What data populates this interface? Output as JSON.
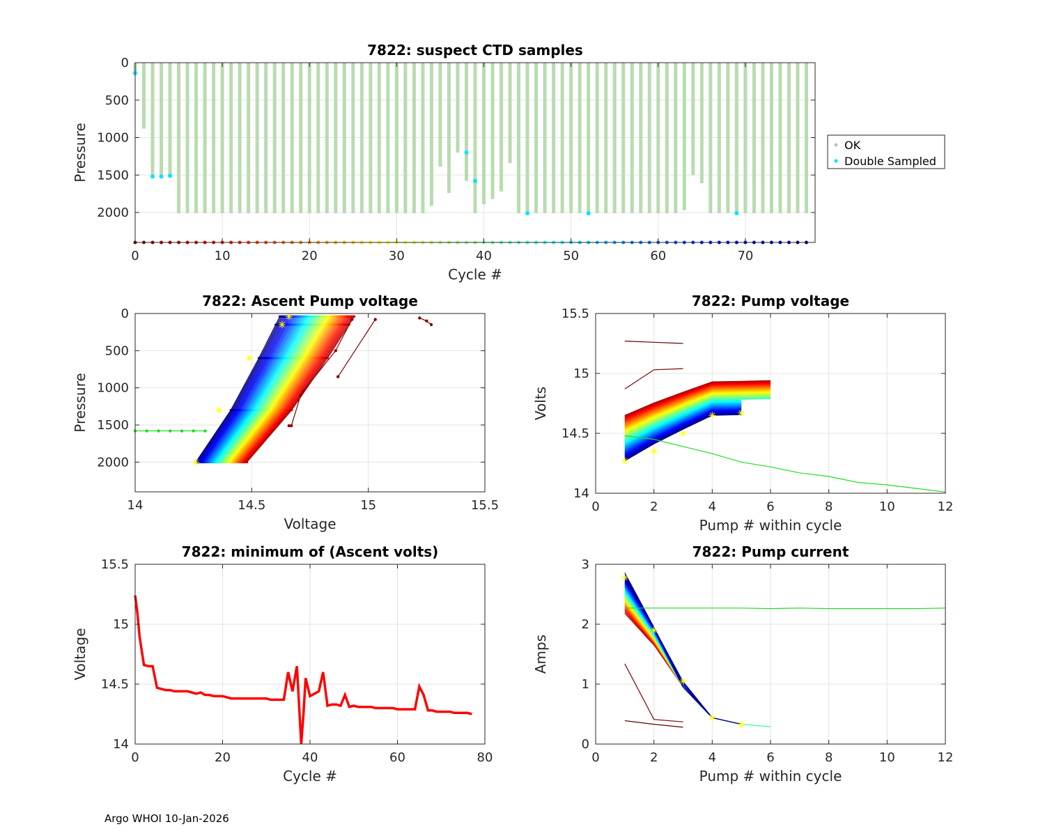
{
  "figure": {
    "footer": "Argo WHOI 10-Jan-2026",
    "float_id": "7822"
  },
  "colors": {
    "ok": "#b8dcb0",
    "ok_marker": "#c0c0c0",
    "double_sampled": "#00e5ff",
    "grid": "#e3e3e3",
    "min_volts_line": "#ff0000",
    "marker_star": "#ffff00",
    "outlier_green": "#22dd22"
  },
  "chart_data": [
    {
      "id": "suspect",
      "type": "bar",
      "title": "7822: suspect CTD samples",
      "xlabel": "Cycle #",
      "ylabel": "Pressure",
      "xlim": [
        0,
        78
      ],
      "ylim": [
        0,
        2400
      ],
      "yreverse": true,
      "xticks": [
        0,
        10,
        20,
        30,
        40,
        50,
        60,
        70
      ],
      "yticks": [
        0,
        500,
        1000,
        1500,
        2000
      ],
      "legend": {
        "placement": "outside-right",
        "entries": [
          "OK",
          "Double Sampled"
        ]
      },
      "series": [
        {
          "name": "OK",
          "x": [
            0,
            1,
            2,
            3,
            4,
            5,
            6,
            7,
            8,
            9,
            10,
            11,
            12,
            13,
            14,
            15,
            16,
            17,
            18,
            19,
            20,
            21,
            22,
            23,
            24,
            25,
            26,
            27,
            28,
            29,
            30,
            31,
            32,
            33,
            34,
            35,
            36,
            37,
            38,
            39,
            40,
            41,
            42,
            43,
            44,
            45,
            46,
            47,
            48,
            49,
            50,
            51,
            52,
            53,
            54,
            55,
            56,
            57,
            58,
            59,
            60,
            61,
            62,
            63,
            64,
            65,
            66,
            67,
            68,
            69,
            70,
            71,
            72,
            73,
            74,
            75,
            76,
            77
          ],
          "values": [
            140,
            880,
            1520,
            1520,
            1510,
            2010,
            2010,
            2010,
            2010,
            2010,
            2010,
            2010,
            2010,
            2010,
            2010,
            2010,
            2010,
            2010,
            2010,
            2010,
            2010,
            2010,
            2010,
            2010,
            2010,
            2010,
            2010,
            2010,
            2010,
            2010,
            2010,
            2010,
            2010,
            2010,
            1910,
            1390,
            1740,
            1200,
            1580,
            2010,
            1890,
            1820,
            1720,
            1340,
            2010,
            2010,
            2010,
            2010,
            2010,
            2010,
            2010,
            2010,
            2010,
            2010,
            2010,
            2010,
            2010,
            2010,
            2010,
            2010,
            2010,
            2010,
            2010,
            1970,
            1500,
            1610,
            2010,
            2010,
            2010,
            2010,
            2010,
            2010,
            2010,
            2010,
            2010,
            2010,
            2010,
            2010
          ]
        },
        {
          "name": "Double Sampled",
          "points": [
            [
              0,
              140
            ],
            [
              2,
              1520
            ],
            [
              3,
              1520
            ],
            [
              4,
              1510
            ],
            [
              38,
              1200
            ],
            [
              39,
              1580
            ],
            [
              45,
              2010
            ],
            [
              52,
              2010
            ],
            [
              69,
              2010
            ]
          ]
        }
      ],
      "cycle_markers_at_pressure": 2400
    },
    {
      "id": "ascent_pump_voltage",
      "type": "line",
      "title": "7822: Ascent Pump voltage",
      "xlabel": "Voltage",
      "ylabel": "Pressure",
      "xlim": [
        14,
        15.5
      ],
      "ylim": [
        0,
        2400
      ],
      "yreverse": true,
      "xticks": [
        14,
        14.5,
        15,
        15.5
      ],
      "yticks": [
        0,
        500,
        1000,
        1500,
        2000
      ],
      "n_cycles": 78,
      "band": {
        "v2000_min": 14.26,
        "v2000_max": 14.48,
        "vtop_min": 14.62,
        "vtop_max": 14.94
      },
      "outliers": [
        {
          "name": "cycle-0",
          "color": "#800000",
          "x": [
            15.22,
            15.25,
            15.27
          ],
          "y": [
            60,
            100,
            150
          ]
        },
        {
          "name": "cycle-1",
          "color": "#800000",
          "x": [
            14.87,
            15.03
          ],
          "y": [
            850,
            80
          ]
        },
        {
          "name": "cycle-2",
          "color": "#900000",
          "x": [
            14.66,
            14.67,
            14.71,
            14.72,
            14.86,
            14.93
          ],
          "y": [
            1510,
            1510,
            1100,
            1050,
            500,
            80
          ]
        },
        {
          "name": "cycle-38",
          "color": "#22dd22",
          "x": [
            14.0,
            14.05,
            14.1,
            14.15,
            14.2,
            14.25,
            14.3
          ],
          "y": [
            1580,
            1580,
            1580,
            1580,
            1580,
            1580,
            1580
          ]
        }
      ]
    },
    {
      "id": "pump_voltage",
      "type": "line",
      "title": "7822: Pump voltage",
      "xlabel": "Pump # within cycle",
      "ylabel": "Volts",
      "xlim": [
        0,
        12
      ],
      "ylim": [
        14,
        15.5
      ],
      "xticks": [
        0,
        2,
        4,
        6,
        8,
        10,
        12
      ],
      "yticks": [
        14,
        14.5,
        15,
        15.5
      ],
      "n_cycles": 78,
      "outliers": [
        {
          "name": "cycle-0",
          "color": "#600000",
          "x": [
            1,
            2,
            3
          ],
          "y": [
            15.27,
            15.26,
            15.25
          ]
        },
        {
          "name": "cycle-1",
          "color": "#800000",
          "x": [
            1,
            2,
            3
          ],
          "y": [
            14.87,
            15.03,
            15.04
          ]
        },
        {
          "name": "cycle-38",
          "color": "#22dd22",
          "x": [
            1,
            2,
            3,
            4,
            5,
            6,
            7,
            8,
            9,
            10,
            11,
            12
          ],
          "y": [
            14.48,
            14.45,
            14.39,
            14.33,
            14.26,
            14.22,
            14.17,
            14.14,
            14.09,
            14.07,
            14.04,
            14.01
          ]
        }
      ]
    },
    {
      "id": "min_ascent_volts",
      "type": "line",
      "title": "7822: minimum of (Ascent volts)",
      "xlabel": "Cycle #",
      "ylabel": "Voltage",
      "xlim": [
        0,
        80
      ],
      "ylim": [
        14,
        15.5
      ],
      "xticks": [
        0,
        20,
        40,
        60,
        80
      ],
      "yticks": [
        14,
        14.5,
        15,
        15.5
      ],
      "x": [
        0,
        0.5,
        1,
        1.5,
        2,
        3,
        4,
        5,
        6,
        7,
        8,
        9,
        10,
        11,
        12,
        13,
        14,
        15,
        16,
        17,
        18,
        19,
        20,
        21,
        22,
        23,
        24,
        25,
        26,
        27,
        28,
        29,
        30,
        31,
        32,
        33,
        34,
        35,
        36,
        37,
        38,
        38.5,
        39,
        40,
        41,
        42,
        43,
        44,
        45,
        46,
        47,
        48,
        49,
        50,
        51,
        52,
        53,
        54,
        55,
        56,
        57,
        58,
        59,
        60,
        61,
        62,
        63,
        64,
        65,
        66,
        67,
        68,
        69,
        70,
        71,
        72,
        73,
        74,
        75,
        76,
        77
      ],
      "values": [
        15.24,
        15.1,
        14.9,
        14.78,
        14.66,
        14.65,
        14.65,
        14.47,
        14.46,
        14.45,
        14.45,
        14.44,
        14.44,
        14.44,
        14.44,
        14.43,
        14.42,
        14.43,
        14.41,
        14.41,
        14.4,
        14.4,
        14.4,
        14.39,
        14.38,
        14.38,
        14.38,
        14.38,
        14.38,
        14.38,
        14.38,
        14.38,
        14.38,
        14.37,
        14.37,
        14.37,
        14.37,
        14.6,
        14.44,
        14.65,
        14.0,
        14.25,
        14.55,
        14.4,
        14.42,
        14.44,
        14.6,
        14.32,
        14.33,
        14.33,
        14.32,
        14.41,
        14.31,
        14.32,
        14.31,
        14.31,
        14.31,
        14.31,
        14.3,
        14.3,
        14.3,
        14.3,
        14.3,
        14.29,
        14.29,
        14.29,
        14.29,
        14.29,
        14.48,
        14.41,
        14.28,
        14.28,
        14.27,
        14.27,
        14.27,
        14.27,
        14.26,
        14.26,
        14.26,
        14.26,
        14.25
      ]
    },
    {
      "id": "pump_current",
      "type": "line",
      "title": "7822: Pump current",
      "xlabel": "Pump # within cycle",
      "ylabel": "Amps",
      "xlim": [
        0,
        12
      ],
      "ylim": [
        0,
        3
      ],
      "xticks": [
        0,
        2,
        4,
        6,
        8,
        10,
        12
      ],
      "yticks": [
        0,
        1,
        2,
        3
      ],
      "n_cycles": 78,
      "outliers": [
        {
          "name": "cycle-0",
          "color": "#600000",
          "x": [
            1,
            2,
            3
          ],
          "y": [
            0.39,
            0.33,
            0.28
          ]
        },
        {
          "name": "cycle-1",
          "color": "#800000",
          "x": [
            1,
            2,
            3
          ],
          "y": [
            1.34,
            0.41,
            0.37
          ]
        },
        {
          "name": "cycle-38",
          "color": "#22dd22",
          "x": [
            1,
            2,
            3,
            4,
            5,
            6,
            7,
            8,
            9,
            10,
            11,
            12
          ],
          "y": [
            2.27,
            2.27,
            2.27,
            2.27,
            2.27,
            2.26,
            2.27,
            2.26,
            2.26,
            2.26,
            2.26,
            2.27
          ]
        }
      ]
    }
  ]
}
